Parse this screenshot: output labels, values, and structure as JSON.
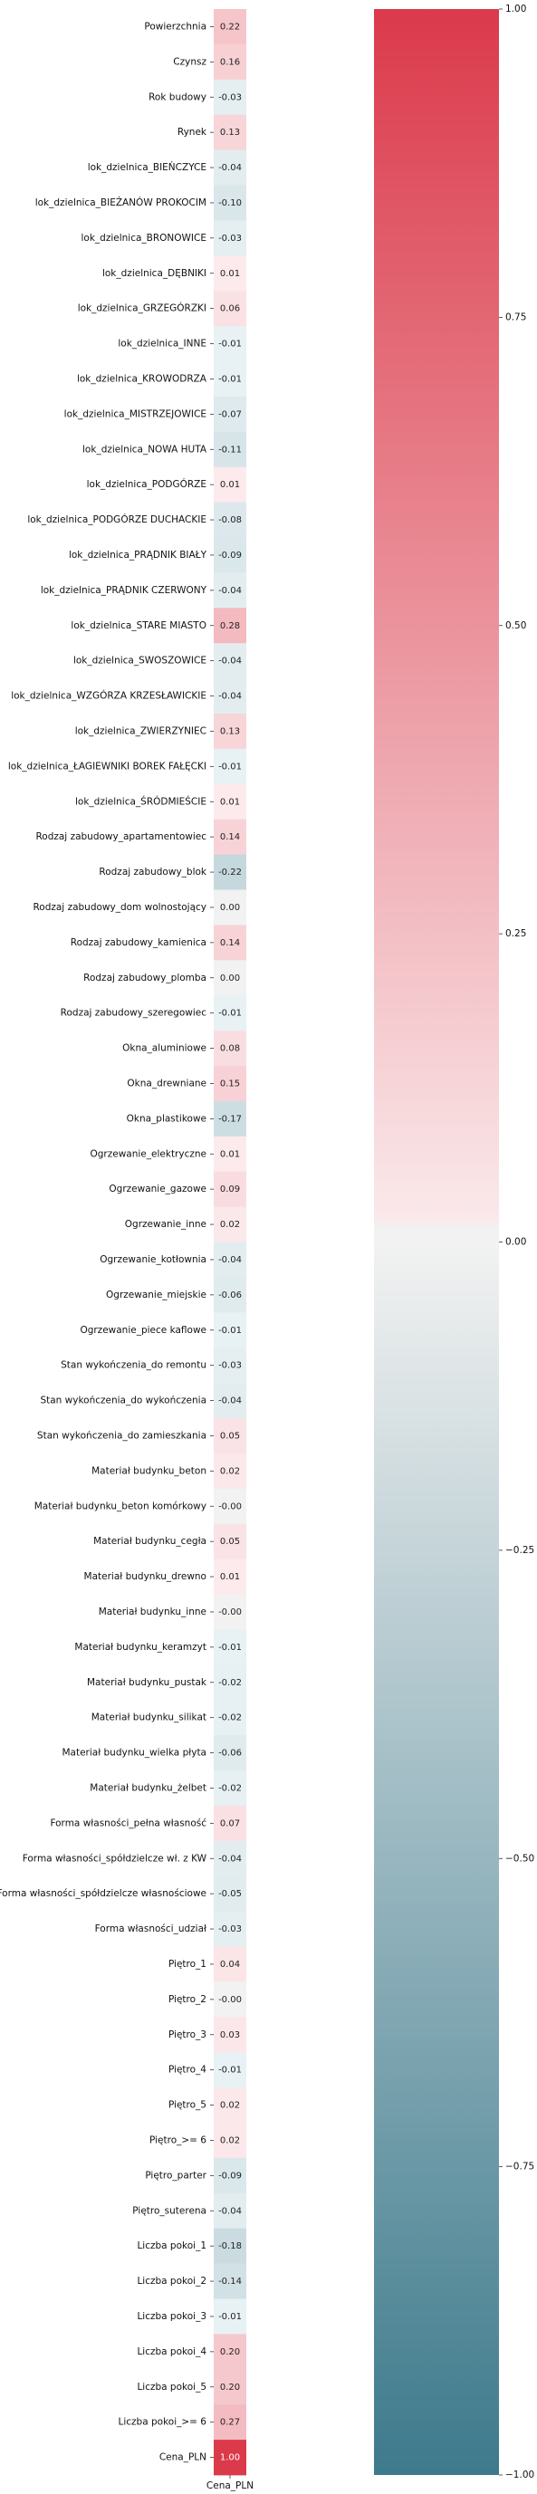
{
  "chart_data": {
    "type": "heatmap",
    "title": "",
    "xlabel": "",
    "ylabel": "",
    "columns": [
      "Cena_PLN"
    ],
    "rows": [
      "Powierzchnia",
      "Czynsz",
      "Rok budowy",
      "Rynek",
      "lok_dzielnica_BIEŃCZYCE",
      "lok_dzielnica_BIEŻANÓW PROKOCIM",
      "lok_dzielnica_BRONOWICE",
      "lok_dzielnica_DĘBNIKI",
      "lok_dzielnica_GRZEGÓRZKI",
      "lok_dzielnica_INNE",
      "lok_dzielnica_KROWODRZA",
      "lok_dzielnica_MISTRZEJOWICE",
      "lok_dzielnica_NOWA HUTA",
      "lok_dzielnica_PODGÓRZE",
      "lok_dzielnica_PODGÓRZE DUCHACKIE",
      "lok_dzielnica_PRĄDNIK BIAŁY",
      "lok_dzielnica_PRĄDNIK CZERWONY",
      "lok_dzielnica_STARE MIASTO",
      "lok_dzielnica_SWOSZOWICE",
      "lok_dzielnica_WZGÓRZA KRZESŁAWICKIE",
      "lok_dzielnica_ZWIERZYNIEC",
      "lok_dzielnica_ŁAGIEWNIKI BOREK FAŁĘCKI",
      "lok_dzielnica_ŚRÓDMIEŚCIE",
      "Rodzaj zabudowy_apartamentowiec",
      "Rodzaj zabudowy_blok",
      "Rodzaj zabudowy_dom wolnostojący",
      "Rodzaj zabudowy_kamienica",
      "Rodzaj zabudowy_plomba",
      "Rodzaj zabudowy_szeregowiec",
      "Okna_aluminiowe",
      "Okna_drewniane",
      "Okna_plastikowe",
      "Ogrzewanie_elektryczne",
      "Ogrzewanie_gazowe",
      "Ogrzewanie_inne",
      "Ogrzewanie_kotłownia",
      "Ogrzewanie_miejskie",
      "Ogrzewanie_piece kaflowe",
      "Stan wykończenia_do remontu",
      "Stan wykończenia_do wykończenia",
      "Stan wykończenia_do zamieszkania",
      "Materiał budynku_beton",
      "Materiał budynku_beton komórkowy",
      "Materiał budynku_cegła",
      "Materiał budynku_drewno",
      "Materiał budynku_inne",
      "Materiał budynku_keramzyt",
      "Materiał budynku_pustak",
      "Materiał budynku_silikat",
      "Materiał budynku_wielka płyta",
      "Materiał budynku_żelbet",
      "Forma własności_pełna własność",
      "Forma własności_spółdzielcze wł. z KW",
      "Forma własności_spółdzielcze własnościowe",
      "Forma własności_udział",
      "Piętro_1",
      "Piętro_2",
      "Piętro_3",
      "Piętro_4",
      "Piętro_5",
      "Piętro_>= 6",
      "Piętro_parter",
      "Piętro_suterena",
      "Liczba pokoi_1",
      "Liczba pokoi_2",
      "Liczba pokoi_3",
      "Liczba pokoi_4",
      "Liczba pokoi_5",
      "Liczba pokoi_>= 6",
      "Cena_PLN"
    ],
    "values": [
      0.22,
      0.16,
      -0.03,
      0.13,
      -0.04,
      -0.1,
      -0.03,
      0.01,
      0.06,
      -0.01,
      -0.01,
      -0.07,
      -0.11,
      0.01,
      -0.08,
      -0.09,
      -0.04,
      0.28,
      -0.04,
      -0.04,
      0.13,
      -0.01,
      0.01,
      0.14,
      -0.22,
      0.0,
      0.14,
      0.0,
      -0.01,
      0.08,
      0.15,
      -0.17,
      0.01,
      0.09,
      0.02,
      -0.04,
      -0.06,
      -0.01,
      -0.03,
      -0.04,
      0.05,
      0.02,
      -0.0,
      0.05,
      0.01,
      -0.0,
      -0.01,
      -0.02,
      -0.02,
      -0.06,
      -0.02,
      0.07,
      -0.04,
      -0.05,
      -0.03,
      0.04,
      -0.0,
      0.03,
      -0.01,
      0.02,
      0.02,
      -0.09,
      -0.04,
      -0.18,
      -0.14,
      -0.01,
      0.2,
      0.2,
      0.27,
      1.0
    ],
    "cell_labels": [
      "0.22",
      "0.16",
      "-0.03",
      "0.13",
      "-0.04",
      "-0.10",
      "-0.03",
      "0.01",
      "0.06",
      "-0.01",
      "-0.01",
      "-0.07",
      "-0.11",
      "0.01",
      "-0.08",
      "-0.09",
      "-0.04",
      "0.28",
      "-0.04",
      "-0.04",
      "0.13",
      "-0.01",
      "0.01",
      "0.14",
      "-0.22",
      "0.00",
      "0.14",
      "0.00",
      "-0.01",
      "0.08",
      "0.15",
      "-0.17",
      "0.01",
      "0.09",
      "0.02",
      "-0.04",
      "-0.06",
      "-0.01",
      "-0.03",
      "-0.04",
      "0.05",
      "0.02",
      "-0.00",
      "0.05",
      "0.01",
      "-0.00",
      "-0.01",
      "-0.02",
      "-0.02",
      "-0.06",
      "-0.02",
      "0.07",
      "-0.04",
      "-0.05",
      "-0.03",
      "0.04",
      "-0.00",
      "0.03",
      "-0.01",
      "0.02",
      "0.02",
      "-0.09",
      "-0.04",
      "-0.18",
      "-0.14",
      "-0.01",
      "0.20",
      "0.20",
      "0.27",
      "1.00"
    ],
    "vmin": -1.0,
    "vmax": 1.0,
    "colorbar_ticks": [
      1.0,
      0.75,
      0.5,
      0.25,
      0.0,
      -0.25,
      -0.5,
      -0.75,
      -1.0
    ],
    "colorbar_tick_labels": [
      "1.00",
      "0.75",
      "0.50",
      "0.25",
      "0.00",
      "−0.25",
      "−0.50",
      "−0.75",
      "−1.00"
    ],
    "colormap": {
      "negative_end": "#3d7a8c",
      "center": "#f2f2f2",
      "positive_end": "#db3a4b"
    }
  }
}
